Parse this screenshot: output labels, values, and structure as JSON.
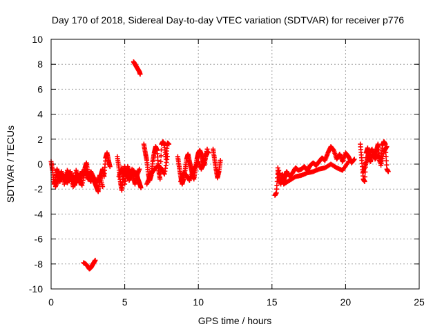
{
  "chart_data": {
    "type": "scatter",
    "title": "Day 170 of 2018, Sidereal Day-to-day VTEC variation (SDTVAR) for receiver p776",
    "xlabel": "GPS time / hours",
    "ylabel": "SDTVAR / TECUs",
    "xlim": [
      0,
      25
    ],
    "ylim": [
      -10,
      10
    ],
    "xticks": [
      0,
      5,
      10,
      15,
      20,
      25
    ],
    "yticks": [
      -10,
      -8,
      -6,
      -4,
      -2,
      0,
      2,
      4,
      6,
      8,
      10
    ],
    "grid": true,
    "marker": "+",
    "colors": {
      "series": "#ff0000",
      "grid": "#a0a0a0",
      "axes": "#000000"
    },
    "series": [
      {
        "name": "SDTVAR",
        "segments": [
          {
            "x": [
              0.0,
              0.1,
              0.2,
              0.3,
              0.4,
              0.5,
              0.6,
              0.7,
              0.8,
              0.9,
              1.0,
              1.1,
              1.2,
              1.3,
              1.4,
              1.5,
              1.6,
              1.7,
              1.8,
              1.9,
              2.0,
              2.1,
              2.2,
              2.3,
              2.4,
              2.5,
              2.6,
              2.7,
              2.8,
              2.9,
              3.0,
              3.1,
              3.2,
              3.3,
              3.4,
              3.5,
              3.6,
              3.7,
              3.8,
              3.9,
              4.0
            ],
            "y": [
              0.2,
              -0.5,
              -1.6,
              -1.2,
              -0.4,
              -0.9,
              -1.4,
              -0.7,
              -1.0,
              -1.3,
              -0.8,
              -1.5,
              -1.1,
              -0.6,
              -1.3,
              -0.9,
              -1.7,
              -1.2,
              -0.8,
              -1.5,
              -1.0,
              -0.6,
              -0.9,
              -0.3,
              0.1,
              -0.7,
              -1.1,
              -1.4,
              -0.9,
              -1.3,
              -1.6,
              -1.9,
              -2.2,
              -1.4,
              -0.8,
              -0.4,
              -1.0,
              0.5,
              0.9,
              0.3,
              -0.2
            ]
          },
          {
            "x": [
              0.3,
              0.5,
              0.7,
              0.9,
              1.1,
              1.3,
              1.5,
              1.7,
              1.9,
              2.1,
              2.3,
              2.5,
              2.7,
              2.9,
              3.1,
              3.3,
              3.5
            ],
            "y": [
              -1.8,
              -1.2,
              -0.6,
              -1.6,
              -0.5,
              -1.0,
              -1.8,
              -0.5,
              -1.2,
              -1.7,
              -0.5,
              -1.2,
              -0.6,
              -1.1,
              -1.5,
              -0.9,
              -1.8
            ]
          },
          {
            "x": [
              2.2,
              2.35,
              2.5,
              2.6,
              2.7,
              2.8,
              2.9,
              3.0
            ],
            "y": [
              -7.9,
              -8.0,
              -8.2,
              -8.4,
              -8.3,
              -8.1,
              -7.9,
              -7.7
            ]
          },
          {
            "x": [
              4.5,
              4.6,
              4.7,
              4.8,
              4.9,
              5.0,
              5.1,
              5.2,
              5.3,
              5.4,
              5.5,
              5.6,
              5.7,
              5.8,
              5.9,
              6.0,
              6.1
            ],
            "y": [
              0.6,
              -0.3,
              -1.4,
              -2.1,
              -0.8,
              -0.2,
              -1.0,
              -0.6,
              -1.3,
              -0.9,
              -0.4,
              -1.1,
              -1.6,
              -0.7,
              -1.2,
              -1.5,
              -1.9
            ]
          },
          {
            "x": [
              4.6,
              4.8,
              5.0,
              5.2,
              5.4,
              5.6,
              5.8,
              6.0
            ],
            "y": [
              -1.0,
              -0.3,
              -1.6,
              -0.2,
              -0.8,
              -0.5,
              -1.0,
              -0.4
            ]
          },
          {
            "x": [
              5.6,
              5.7,
              5.8,
              5.9,
              6.0,
              6.05
            ],
            "y": [
              8.2,
              8.0,
              7.8,
              7.6,
              7.4,
              7.2
            ]
          },
          {
            "x": [
              6.3,
              6.4,
              6.5,
              6.6,
              6.7,
              6.8,
              6.9,
              7.0,
              7.1,
              7.2,
              7.3,
              7.4,
              7.5,
              7.6,
              7.7,
              7.8,
              7.9,
              8.0
            ],
            "y": [
              1.6,
              0.9,
              0.3,
              -0.8,
              -1.3,
              -0.9,
              0.2,
              0.9,
              1.4,
              1.1,
              -0.5,
              -1.2,
              1.6,
              1.8,
              1.5,
              0.4,
              1.7,
              1.6
            ]
          },
          {
            "x": [
              6.5,
              6.7,
              6.9,
              7.1,
              7.3,
              7.5,
              7.7,
              7.9
            ],
            "y": [
              -1.6,
              -1.0,
              -0.6,
              -0.3,
              -0.1,
              -0.4,
              -0.8,
              0.6
            ]
          },
          {
            "x": [
              8.6,
              8.7,
              8.8,
              8.9,
              9.0,
              9.1,
              9.2,
              9.3,
              9.4,
              9.5,
              9.6,
              9.7,
              9.8,
              9.9,
              10.0,
              10.1,
              10.2,
              10.3,
              10.4,
              10.5,
              10.6,
              10.7
            ],
            "y": [
              0.6,
              -0.2,
              -1.0,
              -1.6,
              -1.2,
              -0.5,
              0.4,
              0.8,
              0.2,
              -0.3,
              -0.8,
              -1.2,
              -0.4,
              0.4,
              0.9,
              1.1,
              0.8,
              0.3,
              -0.1,
              0.6,
              1.0,
              0.9
            ]
          },
          {
            "x": [
              8.8,
              9.0,
              9.2,
              9.4,
              9.6,
              9.8,
              10.0,
              10.2,
              10.4,
              10.6
            ],
            "y": [
              -1.4,
              -0.7,
              -0.9,
              -1.3,
              -0.6,
              -0.2,
              0.2,
              -0.4,
              0.1,
              1.2
            ]
          },
          {
            "x": [
              11.0,
              11.1,
              11.2,
              11.3,
              11.4,
              11.5
            ],
            "y": [
              1.2,
              0.4,
              -0.4,
              -1.1,
              -0.6,
              0.3
            ]
          },
          {
            "x": [
              15.2,
              15.3,
              15.4,
              15.5,
              15.6,
              15.7,
              15.8,
              15.9,
              16.0,
              16.2,
              16.4,
              16.6,
              16.8,
              17.0,
              17.2,
              17.4,
              17.6,
              17.8,
              18.0,
              18.2,
              18.4,
              18.6,
              18.8,
              19.0,
              19.2,
              19.4,
              19.6,
              19.8,
              20.0,
              20.2,
              20.4,
              20.6
            ],
            "y": [
              -2.5,
              -2.3,
              -0.5,
              -1.2,
              -1.6,
              -0.8,
              -1.4,
              -0.9,
              -0.6,
              -1.0,
              -0.7,
              -0.3,
              -0.5,
              -0.4,
              -0.2,
              -0.5,
              -0.1,
              0.1,
              -0.1,
              0.2,
              0.5,
              0.3,
              0.9,
              1.4,
              1.1,
              0.4,
              0.8,
              0.2,
              0.9,
              0.6,
              0.1,
              0.4
            ]
          },
          {
            "x": [
              15.4,
              15.8,
              16.2,
              16.6,
              17.0,
              17.4,
              17.8,
              18.2,
              18.6,
              19.0,
              19.4,
              19.8,
              20.2
            ],
            "y": [
              -0.3,
              -1.6,
              -1.3,
              -1.0,
              -0.9,
              -0.7,
              -0.6,
              -0.4,
              -0.3,
              0.0,
              -0.3,
              -0.5,
              0.2
            ]
          },
          {
            "x": [
              21.0,
              21.1,
              21.2,
              21.3,
              21.4,
              21.5,
              21.6,
              21.7,
              21.8,
              21.9,
              22.0,
              22.1,
              22.2,
              22.3,
              22.4,
              22.5,
              22.6,
              22.7,
              22.8,
              22.9
            ],
            "y": [
              1.6,
              0.3,
              -1.2,
              -1.4,
              0.9,
              1.3,
              0.4,
              0.2,
              0.8,
              0.6,
              0.9,
              1.1,
              1.6,
              0.3,
              0.2,
              1.5,
              1.8,
              1.6,
              -0.4,
              -0.6
            ]
          },
          {
            "x": [
              21.2,
              21.4,
              21.6,
              21.8,
              22.0,
              22.2,
              22.4,
              22.6,
              22.8
            ],
            "y": [
              -0.6,
              0.1,
              0.9,
              1.2,
              0.4,
              0.7,
              -0.1,
              1.0,
              1.4
            ]
          }
        ]
      }
    ]
  }
}
